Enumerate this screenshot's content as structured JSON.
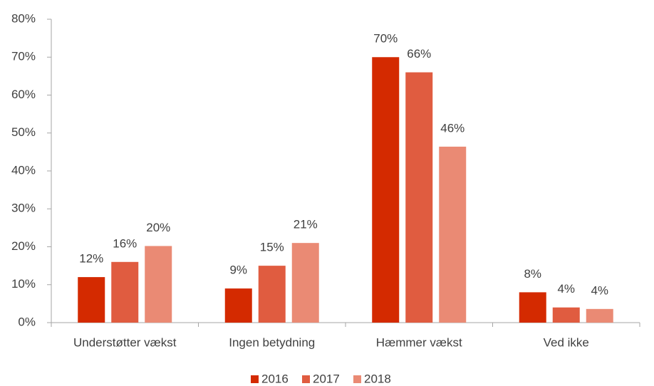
{
  "chart_data": {
    "type": "bar",
    "categories": [
      "Understøtter vækst",
      "Ingen betydning",
      "Hæmmer vækst",
      "Ved ikke"
    ],
    "series": [
      {
        "name": "2016",
        "color": "#d42a00",
        "values": [
          12,
          9,
          70,
          8
        ],
        "value_labels": [
          "12%",
          "9%",
          "70%",
          "8%"
        ]
      },
      {
        "name": "2017",
        "color": "#e05c40",
        "values": [
          16,
          15,
          66,
          4
        ],
        "value_labels": [
          "16%",
          "15%",
          "66%",
          "4%"
        ]
      },
      {
        "name": "2018",
        "color": "#ea8a74",
        "values": [
          20.2,
          21,
          46.4,
          3.6
        ],
        "value_labels": [
          "20%",
          "21%",
          "46%",
          "4%"
        ]
      }
    ],
    "ylim": [
      0,
      80
    ],
    "yticks": [
      {
        "value": 0,
        "label": "0%"
      },
      {
        "value": 10,
        "label": "10%"
      },
      {
        "value": 20,
        "label": "20%"
      },
      {
        "value": 30,
        "label": "30%"
      },
      {
        "value": 40,
        "label": "40%"
      },
      {
        "value": 50,
        "label": "50%"
      },
      {
        "value": 60,
        "label": "60%"
      },
      {
        "value": 70,
        "label": "70%"
      },
      {
        "value": 80,
        "label": "80%"
      }
    ],
    "grid": false,
    "legend": "bottom"
  }
}
